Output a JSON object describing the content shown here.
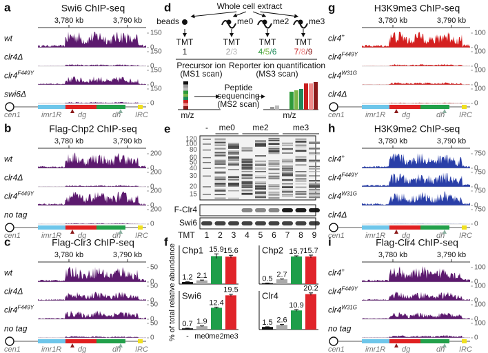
{
  "coords": [
    "3,780 kb",
    "3,790 kb"
  ],
  "locus": [
    "cen1",
    "imr1R",
    "dg",
    "dh",
    "IRC"
  ],
  "chip_panels": [
    {
      "letter": "a",
      "title": "Swi6 ChIP-seq",
      "color": "#5c1a6e",
      "yticks": [
        0,
        150
      ],
      "tracks": [
        {
          "name": "wt"
        },
        {
          "name": "clr4Δ"
        },
        {
          "name": "clr4",
          "sup": "F449Y"
        },
        {
          "name": "swi6Δ"
        }
      ]
    },
    {
      "letter": "b",
      "title": "Flag-Chp2 ChIP-seq",
      "color": "#5c1a6e",
      "yticks": [
        0,
        200
      ],
      "tracks": [
        {
          "name": "wt"
        },
        {
          "name": "clr4Δ"
        },
        {
          "name": "clr4",
          "sup": "F449Y"
        },
        {
          "name": "no tag"
        }
      ]
    },
    {
      "letter": "c",
      "title": "Flag-Clr3 ChIP-seq",
      "color": "#5c1a6e",
      "yticks": [
        0,
        50
      ],
      "tracks": [
        {
          "name": "wt"
        },
        {
          "name": "clr4Δ"
        },
        {
          "name": "clr4",
          "sup": "F449Y"
        },
        {
          "name": "no tag"
        }
      ]
    },
    {
      "letter": "g",
      "title": "H3K9me3 ChIP-seq",
      "color": "#d42020",
      "yticks": [
        0,
        100
      ],
      "tracks": [
        {
          "name": "clr4",
          "sup": "+"
        },
        {
          "name": "clr4",
          "sup": "F449Y"
        },
        {
          "name": "clr4",
          "sup": "W31G"
        },
        {
          "name": "clr4Δ"
        }
      ]
    },
    {
      "letter": "h",
      "title": "H3K9me2 ChIP-seq",
      "color": "#2a3fa8",
      "yticks": [
        0,
        750
      ],
      "tracks": [
        {
          "name": "clr4",
          "sup": "+"
        },
        {
          "name": "clr4",
          "sup": "F449Y"
        },
        {
          "name": "clr4",
          "sup": "W31G"
        },
        {
          "name": "clr4Δ"
        }
      ]
    },
    {
      "letter": "i",
      "title": "Flag-Clr4 ChIP-seq",
      "color": "#5c1a6e",
      "yticks": [
        0,
        100
      ],
      "tracks": [
        {
          "name": "clr4",
          "sup": "+"
        },
        {
          "name": "clr4",
          "sup": "F449Y"
        },
        {
          "name": "clr4",
          "sup": "W31G"
        },
        {
          "name": "no tag"
        }
      ]
    }
  ],
  "panel_d": {
    "letter": "d",
    "extract": "Whole cell extract",
    "samples": [
      "beads",
      "me0",
      "me2",
      "me3"
    ],
    "tmt": "TMT",
    "channels": [
      [
        "1"
      ],
      [
        "2",
        "3"
      ],
      [
        "4",
        "5",
        "6"
      ],
      [
        "7",
        "8",
        "9"
      ]
    ],
    "channel_colors": [
      [
        "#111111"
      ],
      [
        "#999999",
        "#bbbbbb"
      ],
      [
        "#2e9a3a",
        "#7ab648",
        "#1f8a5a"
      ],
      [
        "#c81e1e",
        "#f08a8a",
        "#8b1a1a"
      ]
    ],
    "sep": "/",
    "precursor": [
      "Precursor ion",
      "(MS1 scan)"
    ],
    "reporter": [
      "Reporter ion quantification",
      "(MS3 scan)"
    ],
    "peptide": [
      "Peptide",
      "sequencing",
      "(MS2 scan)"
    ],
    "mz": "m/z"
  },
  "panel_e": {
    "letter": "e",
    "lanes": [
      "-",
      "me0",
      "me2",
      "me3"
    ],
    "markers": [
      120,
      100,
      80,
      60,
      50,
      40,
      30,
      20,
      15
    ],
    "blots": [
      "F-Clr4",
      "Swi6"
    ],
    "tmt": "TMT",
    "lane_numbers": [
      1,
      2,
      3,
      4,
      5,
      6,
      7,
      8,
      9
    ]
  },
  "panel_f": {
    "letter": "f",
    "ylabel": "% of total relative abundance",
    "categories": [
      "-",
      "me0",
      "me2",
      "me3"
    ]
  },
  "chart_data": [
    {
      "type": "bar",
      "title": "Chp1",
      "values": [
        1.2,
        2.1,
        15.9,
        15.6
      ],
      "errors": [
        0.1,
        0.2,
        1.3,
        0.8
      ],
      "colors": [
        "#111111",
        "#aaaaaa",
        "#1e9e4a",
        "#e0242a"
      ],
      "ylim": [
        0,
        22
      ]
    },
    {
      "type": "bar",
      "title": "Chp2",
      "values": [
        0.5,
        2.7,
        15.7,
        15.7
      ],
      "errors": [
        0.1,
        0.2,
        0.4,
        0.8
      ],
      "colors": [
        "#111111",
        "#aaaaaa",
        "#1e9e4a",
        "#e0242a"
      ],
      "ylim": [
        0,
        22
      ]
    },
    {
      "type": "bar",
      "title": "Swi6",
      "values": [
        0.7,
        1.9,
        12.4,
        19.5
      ],
      "errors": [
        0.1,
        0.2,
        0.4,
        0.6
      ],
      "colors": [
        "#111111",
        "#aaaaaa",
        "#1e9e4a",
        "#e0242a"
      ],
      "ylim": [
        0,
        22
      ]
    },
    {
      "type": "bar",
      "title": "Clr4",
      "values": [
        1.5,
        2.6,
        10.9,
        20.2
      ],
      "errors": [
        0.1,
        0.3,
        0.5,
        0.7
      ],
      "colors": [
        "#111111",
        "#aaaaaa",
        "#1e9e4a",
        "#e0242a"
      ],
      "ylim": [
        0,
        22
      ]
    }
  ]
}
